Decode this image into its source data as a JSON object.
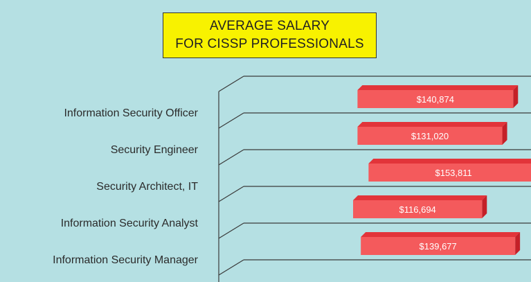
{
  "title": {
    "line1": "AVERAGE SALARY",
    "line2": "FOR CISSP PROFESSIONALS"
  },
  "colors": {
    "background": "#b5e0e3",
    "title_bg": "#f8f200",
    "bar_front": "#f45a5c",
    "bar_top": "#e2343a",
    "bar_side": "#c42028",
    "gridline": "#3a3a3a"
  },
  "chart_data": {
    "type": "bar",
    "orientation": "horizontal",
    "style": "3d-floating",
    "categories": [
      "Information Security Officer",
      "Security Engineer",
      "Security Architect, IT",
      "Information Security Analyst",
      "Information Security Manager"
    ],
    "values": [
      140874,
      131020,
      153811,
      116694,
      139677
    ],
    "value_labels": [
      "$140,874",
      "$131,020",
      "$153,811",
      "$116,694",
      "$139,677"
    ],
    "starts": [
      103000,
      103000,
      113000,
      99000,
      106000
    ],
    "xlim": [
      0,
      260000
    ],
    "title": "AVERAGE SALARY FOR CISSP PROFESSIONALS",
    "xlabel": "",
    "ylabel": "",
    "grid": true,
    "legend": "none"
  }
}
